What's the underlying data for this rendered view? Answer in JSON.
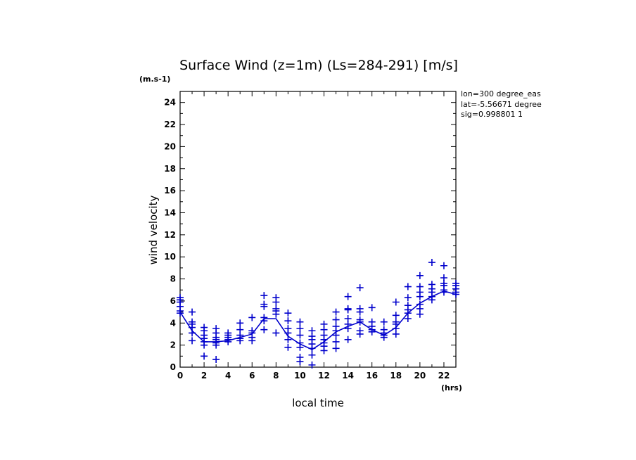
{
  "chart_data": {
    "type": "scatter",
    "title": "Surface Wind (z=1m) (Ls=284-291) [m/s]",
    "xlabel": "local time",
    "ylabel": "wind velocity",
    "x_unit": "(hrs)",
    "y_unit": "(m.s-1)",
    "xlim": [
      0,
      23
    ],
    "ylim": [
      0,
      25
    ],
    "x_ticks": [
      0,
      2,
      4,
      6,
      8,
      10,
      12,
      14,
      16,
      18,
      20,
      22
    ],
    "y_ticks": [
      0,
      2,
      4,
      6,
      8,
      10,
      12,
      14,
      16,
      18,
      20,
      22,
      24
    ],
    "annotations": [
      "lon=300 degree_eas",
      "lat=-5.56671 degree",
      "sig=0.998801 1"
    ],
    "color": "#0000cc",
    "series": [
      {
        "name": "mean",
        "style": "line",
        "x": [
          0,
          1,
          2,
          3,
          4,
          5,
          6,
          7,
          8,
          9,
          10,
          11,
          12,
          13,
          14,
          15,
          16,
          17,
          18,
          19,
          20,
          21,
          22,
          23
        ],
        "y": [
          5.0,
          3.3,
          2.3,
          2.3,
          2.4,
          2.7,
          3.0,
          4.4,
          4.4,
          2.8,
          2.1,
          1.6,
          2.3,
          3.2,
          3.7,
          4.1,
          3.4,
          2.9,
          3.6,
          4.9,
          5.8,
          6.4,
          6.9,
          6.6
        ]
      },
      {
        "name": "samples",
        "style": "plus",
        "points": [
          [
            0,
            6.3
          ],
          [
            0,
            6.1
          ],
          [
            0,
            5.9
          ],
          [
            0,
            5.5
          ],
          [
            0,
            5.1
          ],
          [
            0,
            4.9
          ],
          [
            1,
            5.0
          ],
          [
            1,
            4.1
          ],
          [
            1,
            3.9
          ],
          [
            1,
            3.6
          ],
          [
            1,
            3.1
          ],
          [
            1,
            2.4
          ],
          [
            2,
            3.6
          ],
          [
            2,
            3.3
          ],
          [
            2,
            2.9
          ],
          [
            2,
            2.6
          ],
          [
            2,
            2.3
          ],
          [
            2,
            2.0
          ],
          [
            2,
            1.0
          ],
          [
            3,
            3.5
          ],
          [
            3,
            3.1
          ],
          [
            3,
            2.7
          ],
          [
            3,
            2.5
          ],
          [
            3,
            2.2
          ],
          [
            3,
            2.0
          ],
          [
            3,
            0.7
          ],
          [
            4,
            3.1
          ],
          [
            4,
            2.9
          ],
          [
            4,
            2.7
          ],
          [
            4,
            2.5
          ],
          [
            4,
            2.3
          ],
          [
            5,
            4.0
          ],
          [
            5,
            3.4
          ],
          [
            5,
            2.9
          ],
          [
            5,
            2.6
          ],
          [
            5,
            2.4
          ],
          [
            6,
            4.5
          ],
          [
            6,
            3.3
          ],
          [
            6,
            3.1
          ],
          [
            6,
            2.7
          ],
          [
            6,
            2.4
          ],
          [
            7,
            6.5
          ],
          [
            7,
            5.7
          ],
          [
            7,
            5.5
          ],
          [
            7,
            4.5
          ],
          [
            7,
            4.2
          ],
          [
            7,
            3.4
          ],
          [
            8,
            6.3
          ],
          [
            8,
            5.9
          ],
          [
            8,
            5.3
          ],
          [
            8,
            5.1
          ],
          [
            8,
            4.8
          ],
          [
            8,
            3.1
          ],
          [
            9,
            4.9
          ],
          [
            9,
            4.2
          ],
          [
            9,
            3.5
          ],
          [
            9,
            3.1
          ],
          [
            9,
            2.5
          ],
          [
            9,
            1.8
          ],
          [
            10,
            4.1
          ],
          [
            10,
            3.5
          ],
          [
            10,
            2.9
          ],
          [
            10,
            2.2
          ],
          [
            10,
            1.8
          ],
          [
            10,
            0.9
          ],
          [
            10,
            0.5
          ],
          [
            11,
            3.3
          ],
          [
            11,
            2.8
          ],
          [
            11,
            2.5
          ],
          [
            11,
            2.1
          ],
          [
            11,
            1.7
          ],
          [
            11,
            1.1
          ],
          [
            11,
            0.2
          ],
          [
            12,
            3.9
          ],
          [
            12,
            3.4
          ],
          [
            12,
            2.9
          ],
          [
            12,
            2.5
          ],
          [
            12,
            2.2
          ],
          [
            12,
            1.9
          ],
          [
            12,
            1.5
          ],
          [
            13,
            5.0
          ],
          [
            13,
            4.3
          ],
          [
            13,
            3.7
          ],
          [
            13,
            3.3
          ],
          [
            13,
            2.9
          ],
          [
            13,
            2.3
          ],
          [
            13,
            1.7
          ],
          [
            14,
            6.4
          ],
          [
            14,
            5.3
          ],
          [
            14,
            5.2
          ],
          [
            14,
            4.4
          ],
          [
            14,
            3.9
          ],
          [
            14,
            3.5
          ],
          [
            14,
            2.5
          ],
          [
            15,
            7.2
          ],
          [
            15,
            5.3
          ],
          [
            15,
            5.0
          ],
          [
            15,
            4.3
          ],
          [
            15,
            4.1
          ],
          [
            15,
            3.3
          ],
          [
            15,
            3.0
          ],
          [
            16,
            5.4
          ],
          [
            16,
            4.1
          ],
          [
            16,
            3.7
          ],
          [
            16,
            3.4
          ],
          [
            16,
            3.2
          ],
          [
            17,
            4.1
          ],
          [
            17,
            3.4
          ],
          [
            17,
            3.1
          ],
          [
            17,
            2.9
          ],
          [
            17,
            2.7
          ],
          [
            18,
            5.9
          ],
          [
            18,
            4.7
          ],
          [
            18,
            4.1
          ],
          [
            18,
            3.9
          ],
          [
            18,
            3.5
          ],
          [
            18,
            3.0
          ],
          [
            19,
            7.3
          ],
          [
            19,
            6.3
          ],
          [
            19,
            5.6
          ],
          [
            19,
            5.2
          ],
          [
            19,
            4.9
          ],
          [
            19,
            4.4
          ],
          [
            20,
            8.3
          ],
          [
            20,
            7.3
          ],
          [
            20,
            6.8
          ],
          [
            20,
            6.4
          ],
          [
            20,
            5.7
          ],
          [
            20,
            5.3
          ],
          [
            20,
            4.8
          ],
          [
            21,
            9.5
          ],
          [
            21,
            7.5
          ],
          [
            21,
            7.1
          ],
          [
            21,
            6.8
          ],
          [
            21,
            6.4
          ],
          [
            21,
            6.1
          ],
          [
            22,
            9.2
          ],
          [
            22,
            8.1
          ],
          [
            22,
            7.6
          ],
          [
            22,
            7.4
          ],
          [
            22,
            7.0
          ],
          [
            22,
            6.8
          ],
          [
            23,
            7.6
          ],
          [
            23,
            7.4
          ],
          [
            23,
            7.1
          ],
          [
            23,
            6.8
          ],
          [
            23,
            6.6
          ]
        ]
      }
    ]
  }
}
